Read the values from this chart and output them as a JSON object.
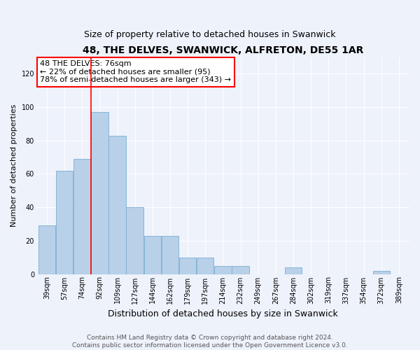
{
  "title": "48, THE DELVES, SWANWICK, ALFRETON, DE55 1AR",
  "subtitle": "Size of property relative to detached houses in Swanwick",
  "xlabel": "Distribution of detached houses by size in Swanwick",
  "ylabel": "Number of detached properties",
  "categories": [
    "39sqm",
    "57sqm",
    "74sqm",
    "92sqm",
    "109sqm",
    "127sqm",
    "144sqm",
    "162sqm",
    "179sqm",
    "197sqm",
    "214sqm",
    "232sqm",
    "249sqm",
    "267sqm",
    "284sqm",
    "302sqm",
    "319sqm",
    "337sqm",
    "354sqm",
    "372sqm",
    "389sqm"
  ],
  "values": [
    29,
    62,
    69,
    97,
    83,
    40,
    23,
    23,
    10,
    10,
    5,
    5,
    0,
    0,
    4,
    0,
    0,
    0,
    0,
    2,
    0
  ],
  "bar_color": "#b8d0e8",
  "bar_edge_color": "#7aafd4",
  "property_label": "48 THE DELVES: 76sqm",
  "annotation_text_line2": "← 22% of detached houses are smaller (95)",
  "annotation_text_line3": "78% of semi-detached houses are larger (343) →",
  "annotation_box_color": "white",
  "annotation_box_edge_color": "red",
  "vline_color": "red",
  "vline_x_index": 2,
  "ylim": [
    0,
    130
  ],
  "yticks": [
    0,
    20,
    40,
    60,
    80,
    100,
    120
  ],
  "background_color": "#eef2fb",
  "plot_bg_color": "#eef2fb",
  "grid_color": "white",
  "footer_line1": "Contains HM Land Registry data © Crown copyright and database right 2024.",
  "footer_line2": "Contains public sector information licensed under the Open Government Licence v3.0.",
  "title_fontsize": 10,
  "subtitle_fontsize": 9,
  "xlabel_fontsize": 9,
  "ylabel_fontsize": 8,
  "tick_fontsize": 7,
  "annotation_fontsize": 8,
  "footer_fontsize": 6.5
}
